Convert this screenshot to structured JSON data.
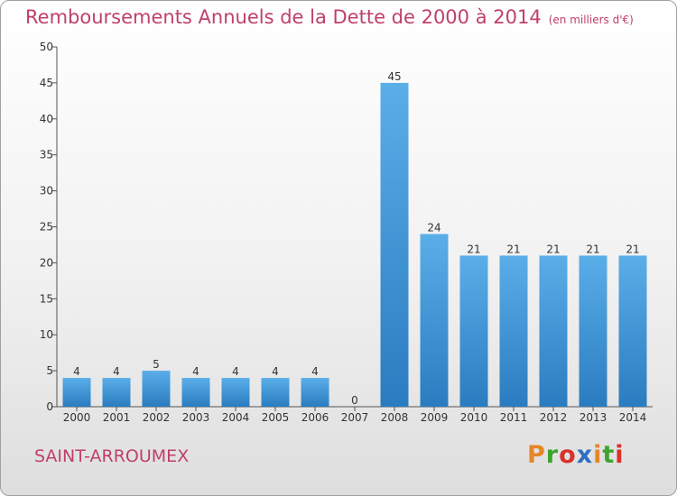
{
  "header": {
    "title": "Remboursements Annuels de la Dette de 2000 à 2014",
    "unit": "(en milliers d'€)"
  },
  "footer": {
    "town": "SAINT-ARROUMEX",
    "logo": "Proxiti",
    "logo_colors": [
      "#e6862a",
      "#3ea32f",
      "#d9312b",
      "#2c6fc2",
      "#e6862a",
      "#3ea32f",
      "#d9312b"
    ]
  },
  "chart_data": {
    "type": "bar",
    "title": "Remboursements Annuels de la Dette de 2000 à 2014",
    "categories": [
      "2000",
      "2001",
      "2002",
      "2003",
      "2004",
      "2005",
      "2006",
      "2007",
      "2008",
      "2009",
      "2010",
      "2011",
      "2012",
      "2013",
      "2014"
    ],
    "values": [
      4,
      4,
      5,
      4,
      4,
      4,
      4,
      0,
      45,
      24,
      21,
      21,
      21,
      21,
      21
    ],
    "data_labels": [
      "4",
      "4",
      "5",
      "4",
      "4",
      "4",
      "4",
      "0",
      "45",
      "24",
      "21",
      "21",
      "21",
      "21",
      "21"
    ],
    "ylim": [
      0,
      50
    ],
    "yticks": [
      0,
      5,
      10,
      15,
      20,
      25,
      30,
      35,
      40,
      45,
      50
    ],
    "ytick_labels": [
      "0",
      "5",
      "10",
      "15",
      "20",
      "25",
      "30",
      "35",
      "40",
      "45",
      "50"
    ],
    "grid": false,
    "legend": "none",
    "bar_color_top": "#5aaee8",
    "bar_color_bottom": "#2a7cc0"
  }
}
